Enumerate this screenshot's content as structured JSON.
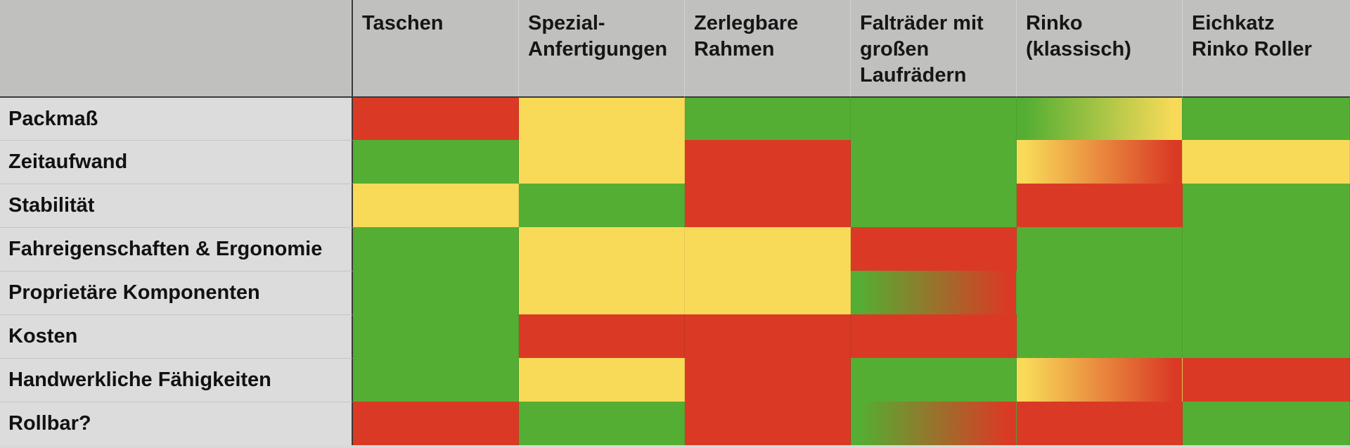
{
  "chart_data": {
    "type": "heatmap",
    "columns": [
      "Taschen",
      "Spezial-\nAnfertigungen",
      "Zerlegbare\nRahmen",
      "Falträder mit\ngroßen\nLaufrädern",
      "Rinko\n(klassisch)",
      "Eichkatz\nRinko Roller"
    ],
    "rows": [
      {
        "label": "Packmaß",
        "ratings": [
          "red",
          "yellow",
          "green",
          "green",
          "green-yellow",
          "green"
        ]
      },
      {
        "label": "Zeitaufwand",
        "ratings": [
          "green",
          "yellow",
          "red",
          "green",
          "yellow-red",
          "yellow"
        ]
      },
      {
        "label": "Stabilität",
        "ratings": [
          "yellow",
          "green",
          "red",
          "green",
          "red",
          "green"
        ]
      },
      {
        "label": "Fahreigenschaften & Ergonomie",
        "ratings": [
          "green",
          "yellow",
          "yellow",
          "red",
          "green",
          "green"
        ]
      },
      {
        "label": "Proprietäre Komponenten",
        "ratings": [
          "green",
          "yellow",
          "yellow",
          "green-red",
          "green",
          "green"
        ]
      },
      {
        "label": "Kosten",
        "ratings": [
          "green",
          "red",
          "red",
          "red",
          "green",
          "green"
        ]
      },
      {
        "label": "Handwerkliche Fähigkeiten",
        "ratings": [
          "green",
          "yellow",
          "red",
          "green",
          "yellow-red",
          "red"
        ]
      },
      {
        "label": "Rollbar?",
        "ratings": [
          "red",
          "green",
          "red",
          "green-red",
          "red",
          "green"
        ]
      }
    ]
  },
  "colors": {
    "green": "#54ae33",
    "yellow": "#f8da58",
    "red": "#da3a25"
  }
}
